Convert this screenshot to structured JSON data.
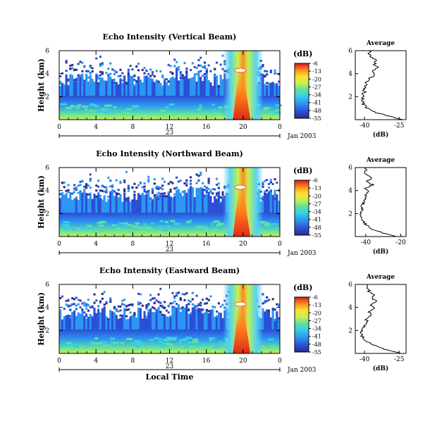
{
  "chart_data": [
    {
      "type": "heatmap",
      "title": "Echo Intensity (Vertical Beam)",
      "ylabel": "Height (km)",
      "xlabel": "",
      "xlim": [
        0,
        24
      ],
      "ylim": [
        0,
        6
      ],
      "x_ticks": [
        "0",
        "4",
        "8",
        "12",
        "16",
        "20",
        "0"
      ],
      "y_ticks": [
        "6",
        "4",
        "2"
      ],
      "date_label": "23",
      "date_suffix": "Jan 2003",
      "colorbar_label": "(dB)",
      "colorbar_ticks": [
        "-6",
        "-13",
        "-20",
        "-27",
        "-34",
        "-41",
        "-48",
        "-55"
      ],
      "colorbar_range": [
        -55,
        -6
      ],
      "grid": false,
      "profile": {
        "title": "Average",
        "xlabel": "(dB)",
        "x_ticks": [
          "-40",
          "-25"
        ],
        "y_ticks": [
          "6",
          "4",
          "2"
        ],
        "xlim": [
          -44,
          -22
        ],
        "ylim": [
          0,
          6
        ],
        "height_km": [
          0.0,
          0.3,
          0.6,
          0.9,
          1.2,
          1.5,
          1.8,
          2.1,
          2.4,
          2.7,
          3.0,
          3.3,
          3.6,
          3.9,
          4.2,
          4.5,
          4.8,
          5.1,
          5.4,
          5.7,
          6.0
        ],
        "db": [
          -24,
          -29,
          -35,
          -38,
          -40,
          -41,
          -41,
          -41,
          -40,
          -40,
          -39,
          -39,
          -38,
          -35,
          -37,
          -34,
          -36,
          -35,
          -37,
          -38,
          -38
        ]
      }
    },
    {
      "type": "heatmap",
      "title": "Echo Intensity (Northward Beam)",
      "ylabel": "Height (km)",
      "xlabel": "",
      "xlim": [
        0,
        24
      ],
      "ylim": [
        0,
        6
      ],
      "x_ticks": [
        "0",
        "4",
        "8",
        "12",
        "16",
        "20",
        "0"
      ],
      "y_ticks": [
        "6",
        "4",
        "2"
      ],
      "date_label": "23",
      "date_suffix": "Jan 2003",
      "colorbar_label": "(dB)",
      "colorbar_ticks": [
        "-6",
        "-13",
        "-20",
        "-27",
        "-34",
        "-41",
        "-48",
        "-55"
      ],
      "colorbar_range": [
        -55,
        -6
      ],
      "grid": false,
      "profile": {
        "title": "Average",
        "xlabel": "(dB)",
        "x_ticks": [
          "-40",
          "-20"
        ],
        "y_ticks": [
          "6",
          "4",
          "2"
        ],
        "xlim": [
          -46,
          -17
        ],
        "ylim": [
          0,
          6
        ],
        "height_km": [
          0.0,
          0.3,
          0.6,
          0.9,
          1.2,
          1.5,
          1.8,
          2.1,
          2.4,
          2.7,
          3.0,
          3.3,
          3.6,
          3.9,
          4.2,
          4.5,
          4.8,
          5.1,
          5.4,
          5.7,
          6.0
        ],
        "db": [
          -22,
          -30,
          -36,
          -39,
          -41,
          -42,
          -43,
          -43,
          -42,
          -42,
          -41,
          -40,
          -40,
          -38,
          -40,
          -36,
          -39,
          -37,
          -40,
          -40,
          -40
        ]
      }
    },
    {
      "type": "heatmap",
      "title": "Echo Intensity (Eastward Beam)",
      "ylabel": "Height (km)",
      "xlabel": "Local Time",
      "xlim": [
        0,
        24
      ],
      "ylim": [
        0,
        6
      ],
      "x_ticks": [
        "0",
        "4",
        "8",
        "12",
        "16",
        "20",
        "0"
      ],
      "y_ticks": [
        "6",
        "4",
        "2"
      ],
      "date_label": "23",
      "date_suffix": "Jan 2003",
      "colorbar_label": "(dB)",
      "colorbar_ticks": [
        "-6",
        "-13",
        "-20",
        "-27",
        "-34",
        "-41",
        "-48",
        "-55"
      ],
      "colorbar_range": [
        -55,
        -6
      ],
      "grid": false,
      "profile": {
        "title": "Average",
        "xlabel": "(dB)",
        "x_ticks": [
          "-40",
          "-25"
        ],
        "y_ticks": [
          "6",
          "4",
          "2"
        ],
        "xlim": [
          -44,
          -22
        ],
        "ylim": [
          0,
          6
        ],
        "height_km": [
          0.0,
          0.3,
          0.6,
          0.9,
          1.2,
          1.5,
          1.8,
          2.1,
          2.4,
          2.7,
          3.0,
          3.3,
          3.6,
          3.9,
          4.2,
          4.5,
          4.8,
          5.1,
          5.4,
          5.7,
          6.0
        ],
        "db": [
          -24,
          -30,
          -35,
          -38,
          -40,
          -41,
          -41,
          -41,
          -40,
          -39,
          -39,
          -37,
          -38,
          -36,
          -37,
          -35,
          -37,
          -36,
          -38,
          -39,
          -39
        ]
      }
    }
  ]
}
